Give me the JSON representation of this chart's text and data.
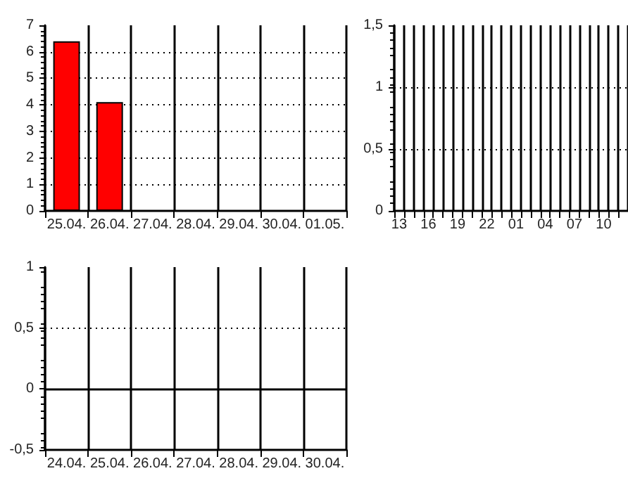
{
  "chart_data": [
    {
      "type": "bar",
      "categories": [
        "25.04.",
        "26.04.",
        "27.04.",
        "28.04.",
        "29.04.",
        "30.04.",
        "01.05."
      ],
      "series": [
        {
          "color": "#ff0000",
          "values": [
            6.4,
            4.1,
            null,
            null,
            null,
            null,
            null
          ]
        }
      ],
      "ylim": [
        0,
        7
      ],
      "yticks": [
        0,
        1,
        2,
        3,
        4,
        5,
        6,
        7
      ],
      "grid": true
    },
    {
      "type": "bar",
      "categories": [
        "13",
        null,
        null,
        "16",
        null,
        null,
        "19",
        null,
        null,
        "22",
        null,
        null,
        "01",
        null,
        null,
        "04",
        null,
        null,
        "07",
        null,
        null,
        "10",
        null,
        null
      ],
      "series": [
        {
          "color": "#ff0000",
          "values": [
            null,
            null,
            null,
            null,
            null,
            null,
            null,
            null,
            null,
            null,
            null,
            null,
            null,
            null,
            null,
            null,
            null,
            null,
            null,
            null,
            null,
            null,
            null,
            null
          ]
        }
      ],
      "ylim": [
        0,
        1.5
      ],
      "yticks": [
        0,
        {
          "value": 0.5,
          "label": "0,5"
        },
        1,
        {
          "value": 1.5,
          "label": "1,5"
        }
      ],
      "grid": true
    },
    {
      "type": "line",
      "categories": [
        "24.04.",
        "25.04.",
        "26.04.",
        "27.04.",
        "28.04.",
        "29.04.",
        "30.04."
      ],
      "series": [
        {
          "color": "#000000",
          "values": [
            null,
            null,
            null,
            null,
            null,
            null,
            null
          ]
        }
      ],
      "ylim": [
        -0.5,
        1
      ],
      "yticks": [
        {
          "value": -0.5,
          "label": "-0,5"
        },
        0,
        {
          "value": 0.5,
          "label": "0,5"
        },
        1
      ],
      "ref_lines": [
        {
          "axis": "y",
          "value": 0
        },
        {
          "axis": "y",
          "value": 0.5,
          "line_style": "dotted"
        }
      ],
      "grid": "x"
    }
  ]
}
